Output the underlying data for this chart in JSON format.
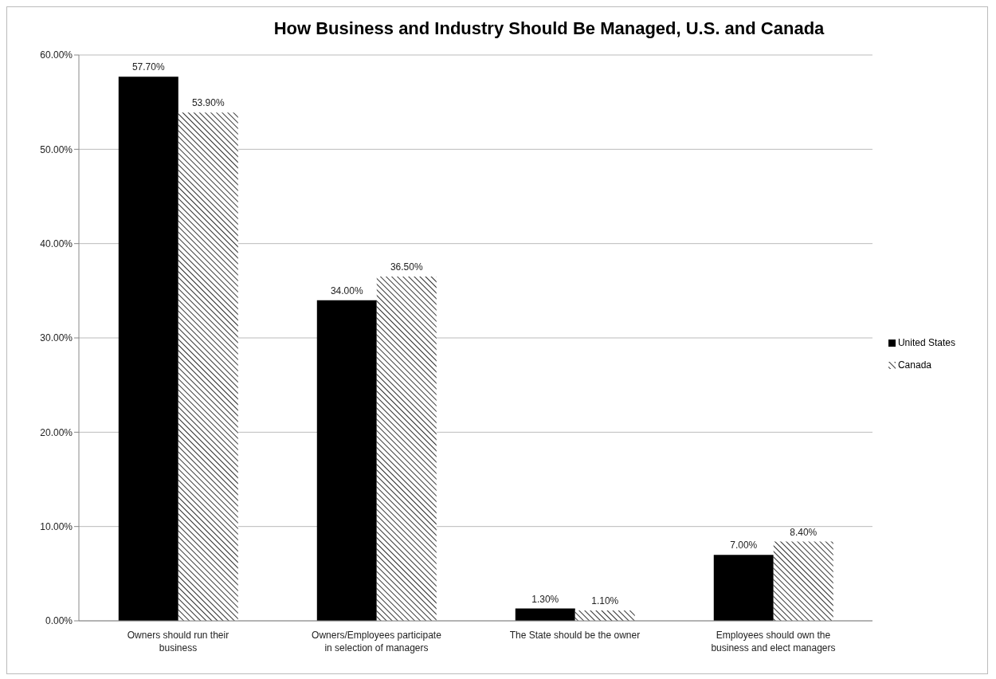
{
  "chart_data": {
    "type": "bar",
    "title": "How Business and Industry Should Be Managed, U.S. and Canada",
    "categories": [
      "Owners should run their business",
      "Owners/Employees participate in selection of managers",
      "The State should be the owner",
      "Employees should own the business and elect managers"
    ],
    "series": [
      {
        "name": "United States",
        "color": "#000000",
        "values": [
          57.7,
          34.0,
          1.3,
          7.0
        ],
        "value_labels": [
          "57.70%",
          "34.00%",
          "1.30%",
          "7.00%"
        ]
      },
      {
        "name": "Canada",
        "color": "#333333",
        "values": [
          53.9,
          36.5,
          1.1,
          8.4
        ],
        "value_labels": [
          "53.90%",
          "36.50%",
          "1.10%",
          "8.40%"
        ]
      }
    ],
    "ylim": [
      0,
      60
    ],
    "yticks": [
      {
        "value": 0,
        "label": "0.00%"
      },
      {
        "value": 10,
        "label": "10.00%"
      },
      {
        "value": 20,
        "label": "20.00%"
      },
      {
        "value": 30,
        "label": "30.00%"
      },
      {
        "value": 40,
        "label": "40.00%"
      },
      {
        "value": 50,
        "label": "50.00%"
      },
      {
        "value": 60,
        "label": "60.00%"
      }
    ],
    "grid": "y",
    "legend": "right"
  }
}
